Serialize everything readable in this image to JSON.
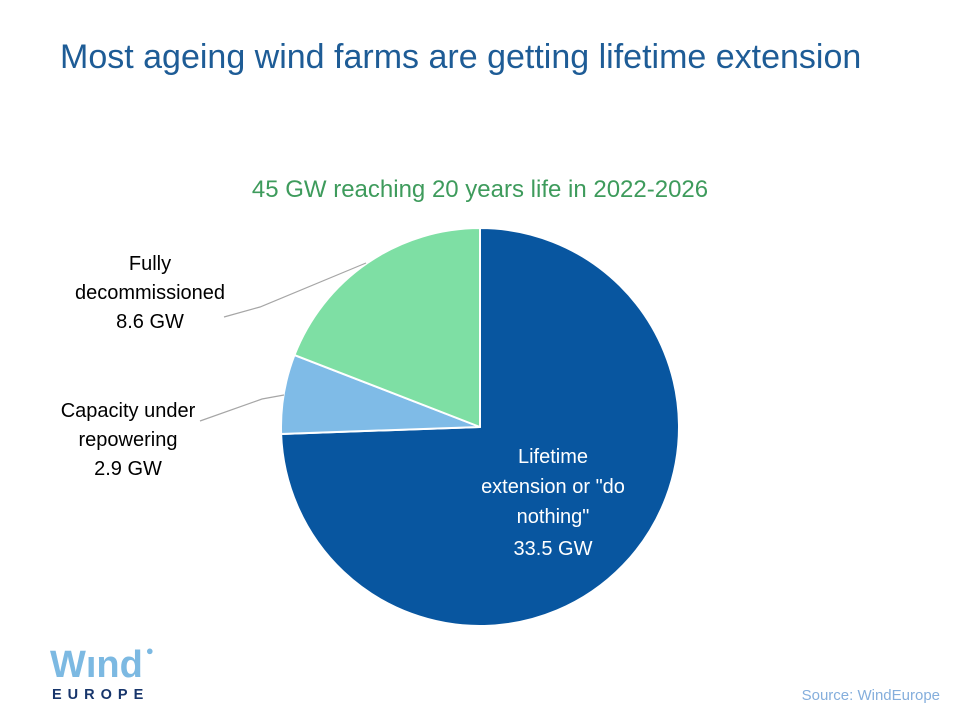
{
  "slide": {
    "title": "Most ageing wind farms are getting lifetime extension",
    "source": "Source: WindEurope"
  },
  "logo": {
    "wordmark": "Wınd",
    "dot": "●",
    "subtext": "EUROPE"
  },
  "colors": {
    "title_blue": "#1E5C96",
    "subtitle_green": "#3E9B5C",
    "slice_dark_blue": "#0856A0",
    "slice_light_blue": "#7FBBE7",
    "slice_green": "#7EDFA4",
    "leader_line_gray": "#A6A6A6",
    "source_text_blue": "#84AEDC",
    "logo_light_blue": "#7CB9E2",
    "logo_navy": "#17356B"
  },
  "chart_data": {
    "type": "pie",
    "title": "45 GW reaching 20 years life in 2022-2026",
    "units": "GW",
    "total": 45,
    "start_angle_deg": 0,
    "direction": "clockwise",
    "legend_position": "none",
    "slices": [
      {
        "label": "Lifetime extension or \"do nothing\"",
        "value": 33.5,
        "value_label": "33.5 GW",
        "color": "#0856A0",
        "label_position": "inside",
        "label_color": "#ffffff"
      },
      {
        "label": "Capacity under repowering",
        "value": 2.9,
        "value_label": "2.9 GW",
        "color": "#7FBBE7",
        "label_position": "outside-left",
        "label_color": "#000000"
      },
      {
        "label": "Fully decommissioned",
        "value": 8.6,
        "value_label": "8.6 GW",
        "color": "#7EDFA4",
        "label_position": "outside-left",
        "label_color": "#000000"
      }
    ]
  }
}
